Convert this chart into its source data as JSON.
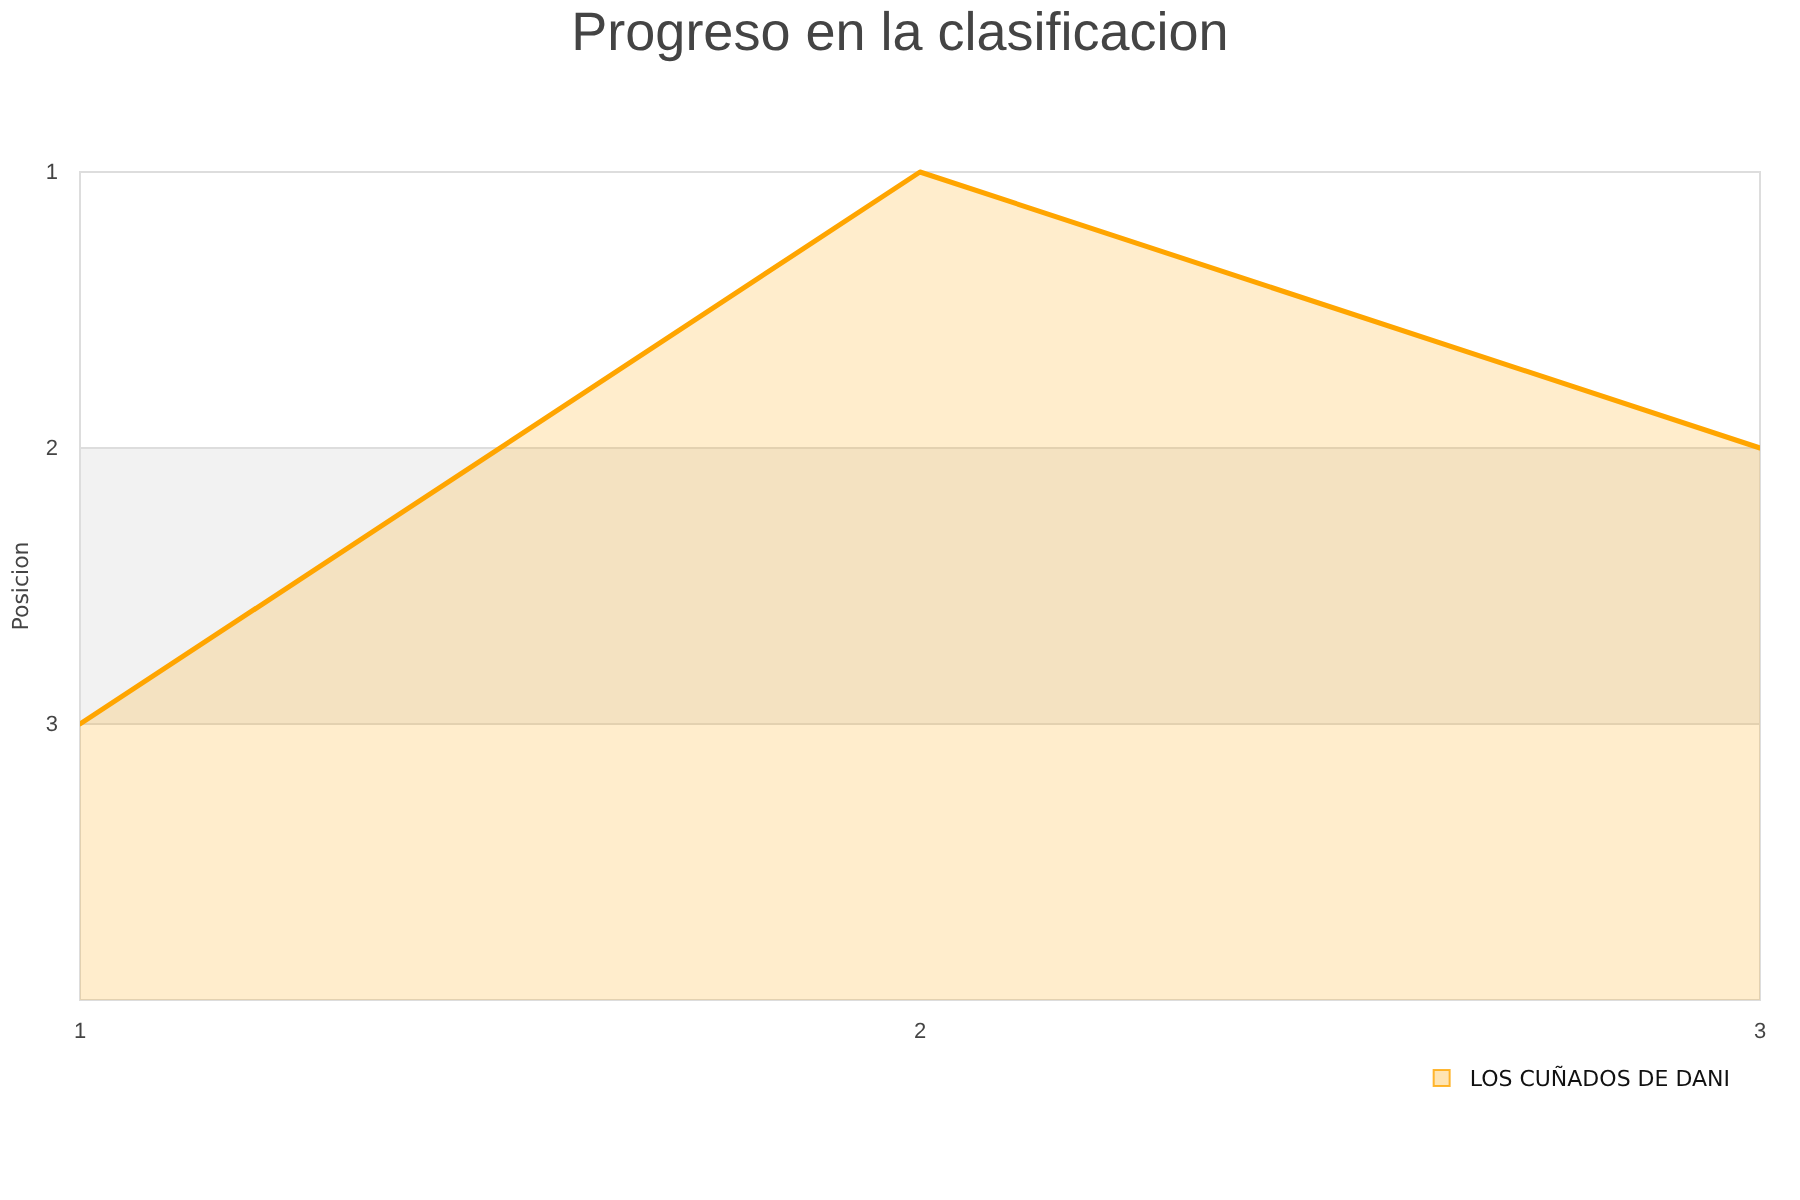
{
  "chart_data": {
    "type": "area",
    "title": "Progreso en la clasificacion",
    "ylabel": "Posicion",
    "x": [
      1,
      2,
      3
    ],
    "xlim": [
      1,
      3
    ],
    "xticks": [
      1,
      2,
      3
    ],
    "ylim": [
      4,
      1
    ],
    "yticks": [
      1,
      2,
      3
    ],
    "series": [
      {
        "name": "LOS CUÑADOS DE DANI",
        "color": "#ffa500",
        "values": [
          3,
          1,
          2
        ]
      }
    ],
    "bands": [
      {
        "axis": "y",
        "from": 2,
        "to": 3,
        "color": "#f2f2f2"
      }
    ],
    "grid": "y",
    "legend": "bottom right"
  }
}
